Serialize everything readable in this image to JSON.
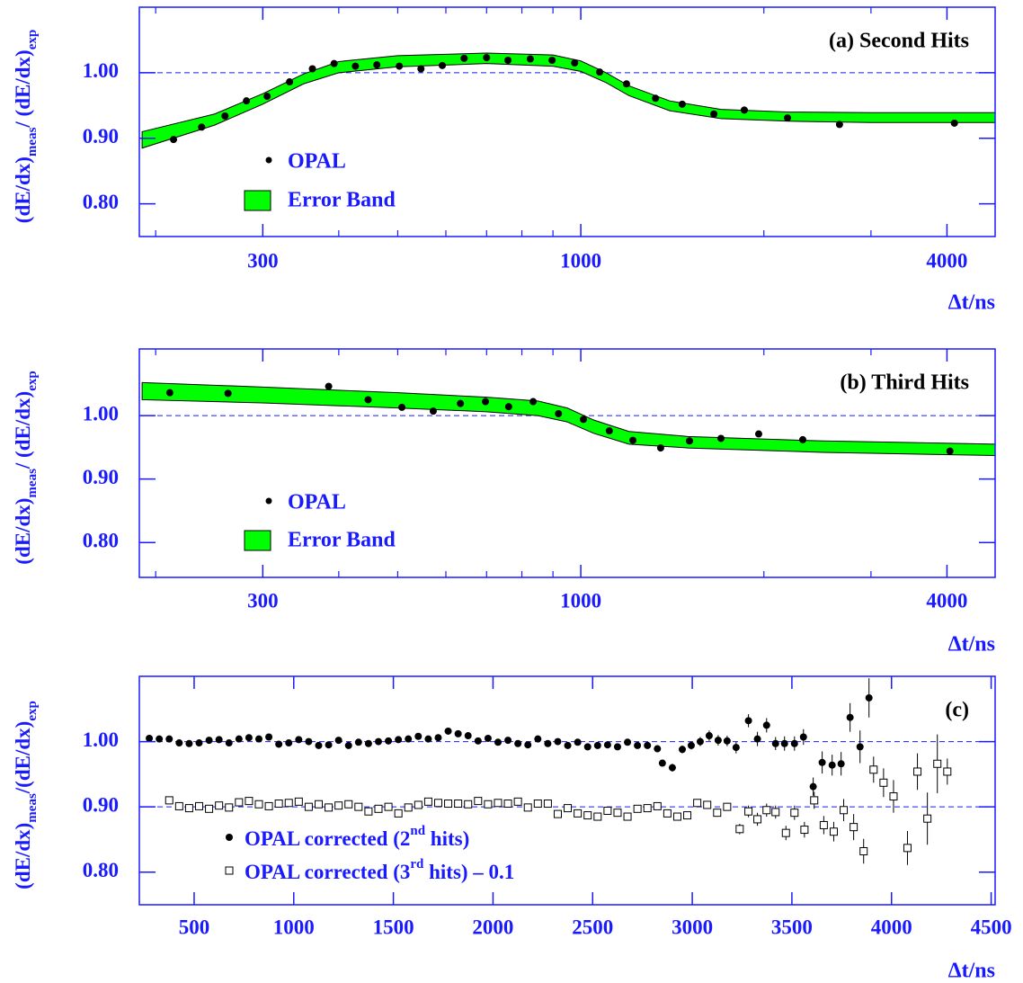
{
  "chart_data": [
    {
      "type": "scatter",
      "title": "(a) Second Hits",
      "xscale": "log",
      "xlim": [
        188,
        4800
      ],
      "ylim": [
        0.75,
        1.1
      ],
      "xticks": [
        300,
        1000,
        4000
      ],
      "xminorticks": [
        200,
        400,
        500,
        600,
        700,
        800,
        900,
        2000,
        3000
      ],
      "yticks": [
        {
          "value": 0.8,
          "label": "0.80"
        },
        {
          "value": 0.9,
          "label": "0.90"
        },
        {
          "value": 1,
          "label": "1.00"
        }
      ],
      "xlabel": "Δt/ns",
      "ylabel": [
        "(dE/dx)",
        "meas",
        "/ (dE/dx)",
        "exp"
      ],
      "hlines": [
        1
      ],
      "axis_color": "#1a1aff",
      "series": [
        {
          "name": "OPAL",
          "marker": "dot",
          "color": "#000000",
          "x": [
            214,
            238,
            260,
            282,
            305,
            332,
            362,
            393,
            426,
            462,
            503,
            546,
            592,
            643,
            700,
            759,
            826,
            897,
            977,
            1074,
            1189,
            1327,
            1468,
            1655,
            1857,
            2187,
            2663,
            4114
          ],
          "values": [
            0.898,
            0.917,
            0.934,
            0.957,
            0.964,
            0.986,
            1.006,
            1.014,
            1.01,
            1.012,
            1.01,
            1.006,
            1.011,
            1.022,
            1.023,
            1.019,
            1.021,
            1.019,
            1.015,
            1.001,
            0.983,
            0.961,
            0.952,
            0.937,
            0.943,
            0.931,
            0.921,
            0.923
          ]
        }
      ],
      "band": {
        "name": "Error Band",
        "color": "#00ff00",
        "x": [
          190,
          250,
          300,
          350,
          400,
          500,
          700,
          900,
          1000,
          1100,
          1200,
          1400,
          1700,
          2200,
          3000,
          4800
        ],
        "upper": [
          0.91,
          0.937,
          0.968,
          0.998,
          1.017,
          1.026,
          1.03,
          1.027,
          1.018,
          1.0,
          0.98,
          0.957,
          0.944,
          0.94,
          0.939,
          0.939
        ],
        "lower": [
          0.885,
          0.92,
          0.952,
          0.983,
          1.0,
          1.009,
          1.014,
          1.01,
          1.002,
          0.985,
          0.965,
          0.942,
          0.93,
          0.926,
          0.924,
          0.924
        ]
      }
    },
    {
      "type": "scatter",
      "title": "(b) Third Hits",
      "xscale": "log",
      "xlim": [
        188,
        4800
      ],
      "ylim": [
        0.745,
        1.105
      ],
      "xticks": [
        300,
        1000,
        4000
      ],
      "xminorticks": [
        200,
        400,
        500,
        600,
        700,
        800,
        900,
        2000,
        3000
      ],
      "yticks": [
        {
          "value": 0.8,
          "label": "0.80"
        },
        {
          "value": 0.9,
          "label": "0.90"
        },
        {
          "value": 1,
          "label": "1.00"
        }
      ],
      "xlabel": "Δt/ns",
      "ylabel": [
        "(dE/dx)",
        "meas",
        "/ (dE/dx)",
        "exp"
      ],
      "hlines": [
        1
      ],
      "axis_color": "#1a1aff",
      "series": [
        {
          "name": "OPAL",
          "marker": "dot",
          "color": "#000000",
          "x": [
            211,
            263,
            385,
            447,
            508,
            572,
            634,
            697,
            761,
            835,
            919,
            1010,
            1114,
            1218,
            1353,
            1509,
            1700,
            1961,
            2317,
            4045
          ],
          "values": [
            1.036,
            1.035,
            1.046,
            1.025,
            1.013,
            1.007,
            1.019,
            1.022,
            1.014,
            1.022,
            1.003,
            0.994,
            0.976,
            0.961,
            0.949,
            0.96,
            0.964,
            0.971,
            0.962,
            0.944
          ]
        }
      ],
      "band": {
        "name": "Error Band",
        "color": "#00ff00",
        "x": [
          190,
          300,
          500,
          700,
          850,
          950,
          1050,
          1200,
          1500,
          2500,
          4800
        ],
        "upper": [
          1.052,
          1.045,
          1.036,
          1.029,
          1.023,
          1.012,
          0.993,
          0.975,
          0.967,
          0.96,
          0.955
        ],
        "lower": [
          1.025,
          1.02,
          1.012,
          1.006,
          1.0,
          0.99,
          0.972,
          0.955,
          0.949,
          0.942,
          0.937
        ]
      }
    },
    {
      "type": "scatter",
      "title": "(c)",
      "xscale": "linear",
      "xlim": [
        225,
        4520
      ],
      "ylim": [
        0.75,
        1.1
      ],
      "xticks": [
        500,
        1000,
        1500,
        2000,
        2500,
        3000,
        3500,
        4000,
        4500
      ],
      "yticks": [
        {
          "value": 0.8,
          "label": "0.80"
        },
        {
          "value": 0.9,
          "label": "0.90"
        },
        {
          "value": 1,
          "label": "1.00"
        }
      ],
      "xlabel": "Δt/ns",
      "ylabel": [
        "(dE/dx)",
        "meas",
        "/(dE/dx)",
        "exp"
      ],
      "hlines": [
        1,
        0.9
      ],
      "axis_color": "#1a1aff",
      "series": [
        {
          "label": {
            "text": "OPAL corrected (2",
            "sup": "nd",
            "tail": " hits)"
          },
          "marker": "dot",
          "color": "#000000",
          "x": [
            275,
            325,
            375,
            425,
            475,
            525,
            575,
            625,
            675,
            725,
            775,
            825,
            875,
            925,
            975,
            1025,
            1075,
            1125,
            1175,
            1225,
            1275,
            1325,
            1375,
            1425,
            1475,
            1525,
            1575,
            1625,
            1675,
            1725,
            1775,
            1825,
            1875,
            1925,
            1975,
            2025,
            2075,
            2125,
            2175,
            2225,
            2275,
            2325,
            2375,
            2425,
            2475,
            2525,
            2575,
            2625,
            2675,
            2725,
            2775,
            2825,
            2850,
            2900,
            2950,
            2995,
            3040,
            3085,
            3130,
            3175,
            3220,
            3282,
            3327,
            3373,
            3418,
            3463,
            3513,
            3558,
            3607,
            3652,
            3702,
            3747,
            3792,
            3842,
            3887
          ],
          "values": [
            1.005,
            1.004,
            1.004,
            0.998,
            0.997,
            0.998,
            1.002,
            1.003,
            0.998,
            1.004,
            1.006,
            1.004,
            1.007,
            0.996,
            0.998,
            1.003,
            1.0,
            0.994,
            0.995,
            1.002,
            0.994,
            0.999,
            0.997,
            1.0,
            1.001,
            1.003,
            1.004,
            1.008,
            1.004,
            1.006,
            1.016,
            1.012,
            1.009,
            1.001,
            1.005,
            0.999,
            1.002,
            0.997,
            0.995,
            1.004,
            0.997,
            1.0,
            0.994,
            0.999,
            0.992,
            0.994,
            0.995,
            0.992,
            0.999,
            0.994,
            0.994,
            0.989,
            0.967,
            0.96,
            0.988,
            0.994,
            1.0,
            1.009,
            1.002,
            1.001,
            0.991,
            1.032,
            1.004,
            1.025,
            0.997,
            0.997,
            0.997,
            1.007,
            0.931,
            0.968,
            0.964,
            0.966,
            1.037,
            0.992,
            1.067
          ],
          "errors": [
            0.003,
            0.003,
            0.003,
            0.003,
            0.003,
            0.003,
            0.003,
            0.003,
            0.003,
            0.003,
            0.003,
            0.003,
            0.003,
            0.003,
            0.003,
            0.003,
            0.003,
            0.003,
            0.003,
            0.003,
            0.003,
            0.003,
            0.003,
            0.003,
            0.003,
            0.003,
            0.003,
            0.003,
            0.003,
            0.003,
            0.003,
            0.003,
            0.003,
            0.003,
            0.003,
            0.003,
            0.003,
            0.003,
            0.003,
            0.003,
            0.003,
            0.003,
            0.003,
            0.003,
            0.003,
            0.003,
            0.003,
            0.003,
            0.003,
            0.003,
            0.003,
            0.003,
            0.005,
            0.006,
            0.006,
            0.006,
            0.007,
            0.008,
            0.008,
            0.008,
            0.009,
            0.01,
            0.011,
            0.011,
            0.01,
            0.011,
            0.011,
            0.012,
            0.014,
            0.017,
            0.016,
            0.018,
            0.022,
            0.025,
            0.03
          ]
        },
        {
          "label": {
            "text": "OPAL corrected (3",
            "sup": "rd",
            "tail": " hits) – 0.1"
          },
          "marker": "square",
          "color": "#000000",
          "x": [
            375,
            425,
            475,
            525,
            575,
            625,
            675,
            725,
            775,
            825,
            875,
            925,
            975,
            1025,
            1075,
            1125,
            1175,
            1225,
            1275,
            1325,
            1375,
            1425,
            1475,
            1525,
            1575,
            1625,
            1675,
            1725,
            1775,
            1825,
            1875,
            1925,
            1975,
            2025,
            2075,
            2125,
            2175,
            2225,
            2275,
            2325,
            2375,
            2425,
            2475,
            2525,
            2575,
            2625,
            2675,
            2725,
            2775,
            2825,
            2875,
            2925,
            2975,
            3025,
            3075,
            3125,
            3175,
            3238,
            3282,
            3327,
            3373,
            3418,
            3470,
            3513,
            3563,
            3612,
            3660,
            3710,
            3760,
            3810,
            3860,
            3910,
            3960,
            4010,
            4080,
            4130,
            4180,
            4230,
            4280
          ],
          "values": [
            0.91,
            0.901,
            0.898,
            0.901,
            0.897,
            0.902,
            0.899,
            0.907,
            0.909,
            0.904,
            0.901,
            0.905,
            0.906,
            0.908,
            0.9,
            0.904,
            0.899,
            0.902,
            0.904,
            0.9,
            0.893,
            0.897,
            0.9,
            0.89,
            0.899,
            0.903,
            0.908,
            0.906,
            0.905,
            0.905,
            0.904,
            0.909,
            0.904,
            0.906,
            0.905,
            0.908,
            0.899,
            0.905,
            0.905,
            0.889,
            0.898,
            0.89,
            0.887,
            0.885,
            0.894,
            0.891,
            0.885,
            0.897,
            0.898,
            0.901,
            0.89,
            0.885,
            0.887,
            0.906,
            0.903,
            0.891,
            0.9,
            0.866,
            0.893,
            0.881,
            0.895,
            0.892,
            0.86,
            0.891,
            0.865,
            0.91,
            0.872,
            0.862,
            0.895,
            0.869,
            0.832,
            0.957,
            0.937,
            0.916,
            0.837,
            0.954,
            0.882,
            0.966,
            0.954
          ],
          "errors": [
            0.003,
            0.003,
            0.003,
            0.003,
            0.003,
            0.003,
            0.003,
            0.003,
            0.003,
            0.003,
            0.003,
            0.003,
            0.003,
            0.003,
            0.003,
            0.003,
            0.003,
            0.003,
            0.003,
            0.003,
            0.003,
            0.003,
            0.003,
            0.003,
            0.003,
            0.003,
            0.003,
            0.003,
            0.003,
            0.003,
            0.003,
            0.003,
            0.003,
            0.003,
            0.003,
            0.003,
            0.003,
            0.003,
            0.004,
            0.004,
            0.004,
            0.004,
            0.004,
            0.004,
            0.004,
            0.005,
            0.005,
            0.005,
            0.005,
            0.005,
            0.005,
            0.005,
            0.005,
            0.006,
            0.006,
            0.006,
            0.006,
            0.008,
            0.009,
            0.01,
            0.01,
            0.01,
            0.011,
            0.011,
            0.012,
            0.013,
            0.014,
            0.015,
            0.017,
            0.02,
            0.019,
            0.02,
            0.022,
            0.025,
            0.026,
            0.028,
            0.04,
            0.045,
            0.02
          ]
        }
      ]
    }
  ]
}
